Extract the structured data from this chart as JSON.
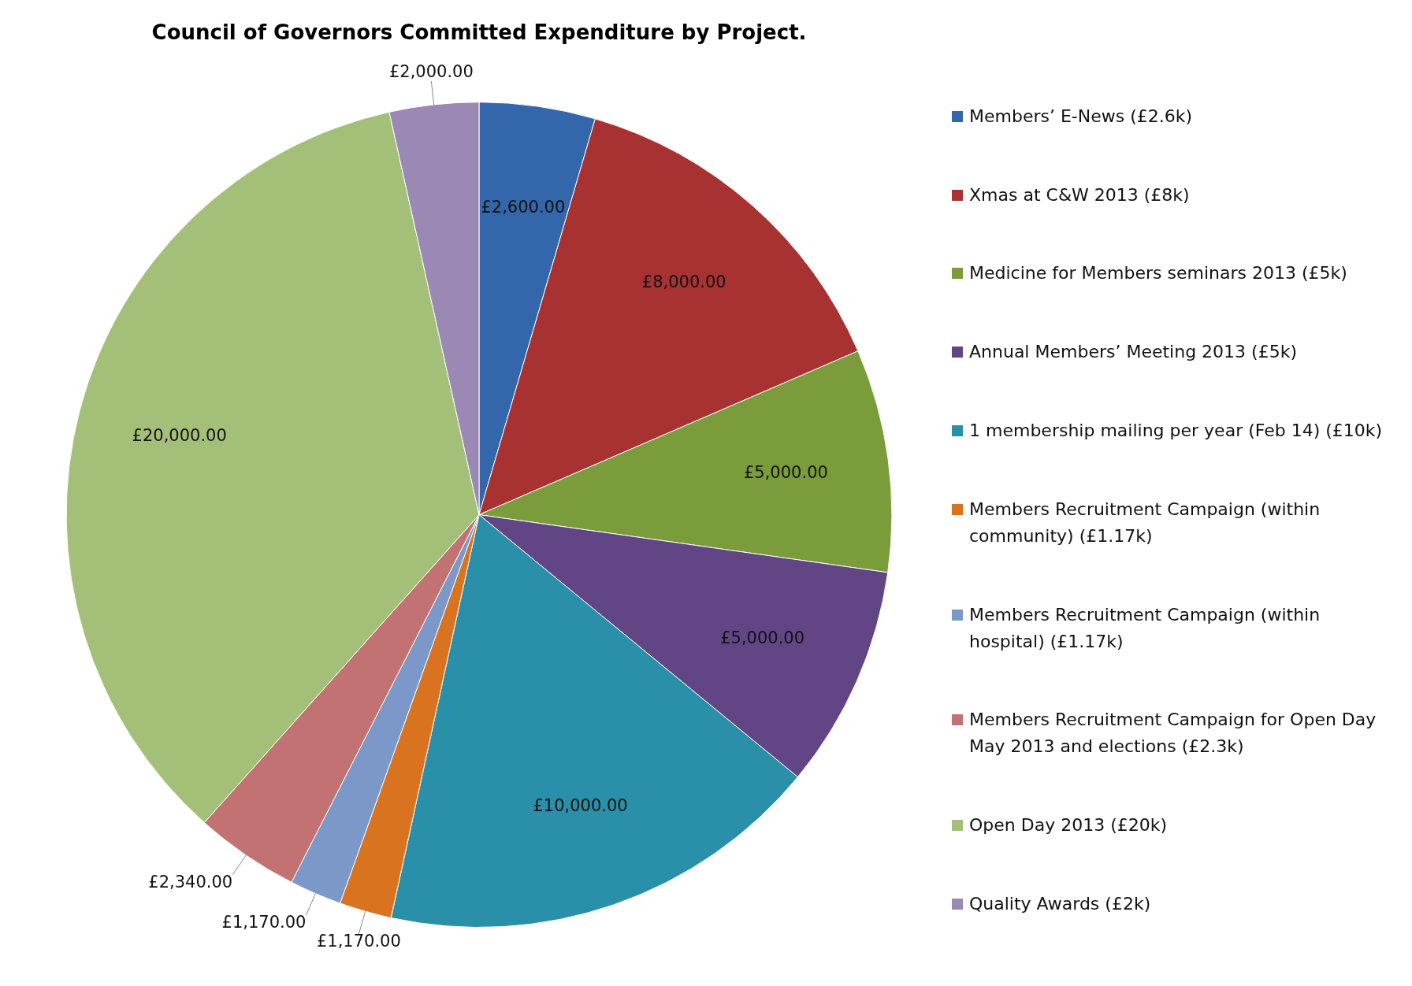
{
  "chart_data": {
    "type": "pie",
    "title": "Council of Governors Committed Expenditure by Project.",
    "categories": [
      "Members’ E-News (£2.6k)",
      "Xmas at C&W 2013 (£8k)",
      "Medicine for Members seminars 2013 (£5k)",
      "Annual Members’ Meeting 2013 (£5k)",
      "1 membership mailing per year (Feb 14) (£10k)",
      "Members Recruitment Campaign (within community) (£1.17k)",
      "Members Recruitment Campaign (within hospital) (£1.17k)",
      "Members Recruitment Campaign for Open Day May 2013 and elections (£2.3k)",
      "Open Day 2013 (£20k)",
      "Quality Awards (£2k)"
    ],
    "values": [
      2600,
      8000,
      5000,
      5000,
      10000,
      1170,
      1170,
      2340,
      20000,
      2000
    ],
    "value_labels": [
      "£2,600.00",
      "£8,000.00",
      "£5,000.00",
      "£5,000.00",
      "£10,000.00",
      "£1,170.00",
      "£1,170.00",
      "£2,340.00",
      "£20,000.00",
      "£2,000.00"
    ],
    "colors": [
      "#3366aa",
      "#a83232",
      "#7a9c3a",
      "#614585",
      "#2a8fa8",
      "#d9731f",
      "#7b98c8",
      "#c27272",
      "#a4c078",
      "#9a88b5"
    ],
    "legend": "right"
  }
}
